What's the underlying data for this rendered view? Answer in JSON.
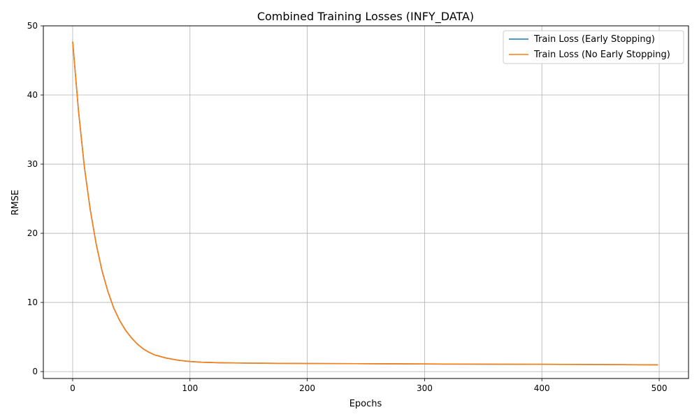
{
  "chart_data": {
    "type": "line",
    "title": "Combined Training Losses (INFY_DATA)",
    "xlabel": "Epochs",
    "ylabel": "RMSE",
    "xlim": [
      -25,
      525
    ],
    "ylim": [
      -1.0,
      50
    ],
    "xticks": [
      0,
      100,
      200,
      300,
      400,
      500
    ],
    "yticks": [
      0,
      10,
      20,
      30,
      40,
      50
    ],
    "grid": true,
    "legend": "top-right",
    "series": [
      {
        "name": "Train Loss (Early Stopping)",
        "color": "#1f77b4",
        "x": [
          0,
          5,
          10,
          15,
          20,
          25,
          30,
          35,
          40,
          45,
          50,
          55,
          60,
          65,
          70,
          80,
          90,
          100,
          110,
          125,
          150,
          175,
          200,
          250,
          300,
          350,
          400,
          450,
          499
        ],
        "y": [
          47.7,
          37.7,
          29.6,
          23.4,
          18.5,
          14.6,
          11.6,
          9.2,
          7.4,
          6.0,
          4.9,
          4.0,
          3.3,
          2.8,
          2.4,
          1.95,
          1.65,
          1.45,
          1.35,
          1.28,
          1.22,
          1.19,
          1.17,
          1.14,
          1.1,
          1.07,
          1.05,
          1.02,
          0.98
        ]
      },
      {
        "name": "Train Loss (No Early Stopping)",
        "color": "#ff7f0e",
        "x": [
          0,
          5,
          10,
          15,
          20,
          25,
          30,
          35,
          40,
          45,
          50,
          55,
          60,
          65,
          70,
          80,
          90,
          100,
          110,
          125,
          150,
          175,
          200,
          250,
          300,
          350,
          400,
          450,
          499
        ],
        "y": [
          47.7,
          37.7,
          29.6,
          23.4,
          18.5,
          14.6,
          11.6,
          9.2,
          7.4,
          6.0,
          4.9,
          4.0,
          3.3,
          2.8,
          2.4,
          1.95,
          1.65,
          1.45,
          1.35,
          1.28,
          1.22,
          1.19,
          1.17,
          1.14,
          1.1,
          1.07,
          1.05,
          1.02,
          0.98
        ]
      }
    ]
  }
}
